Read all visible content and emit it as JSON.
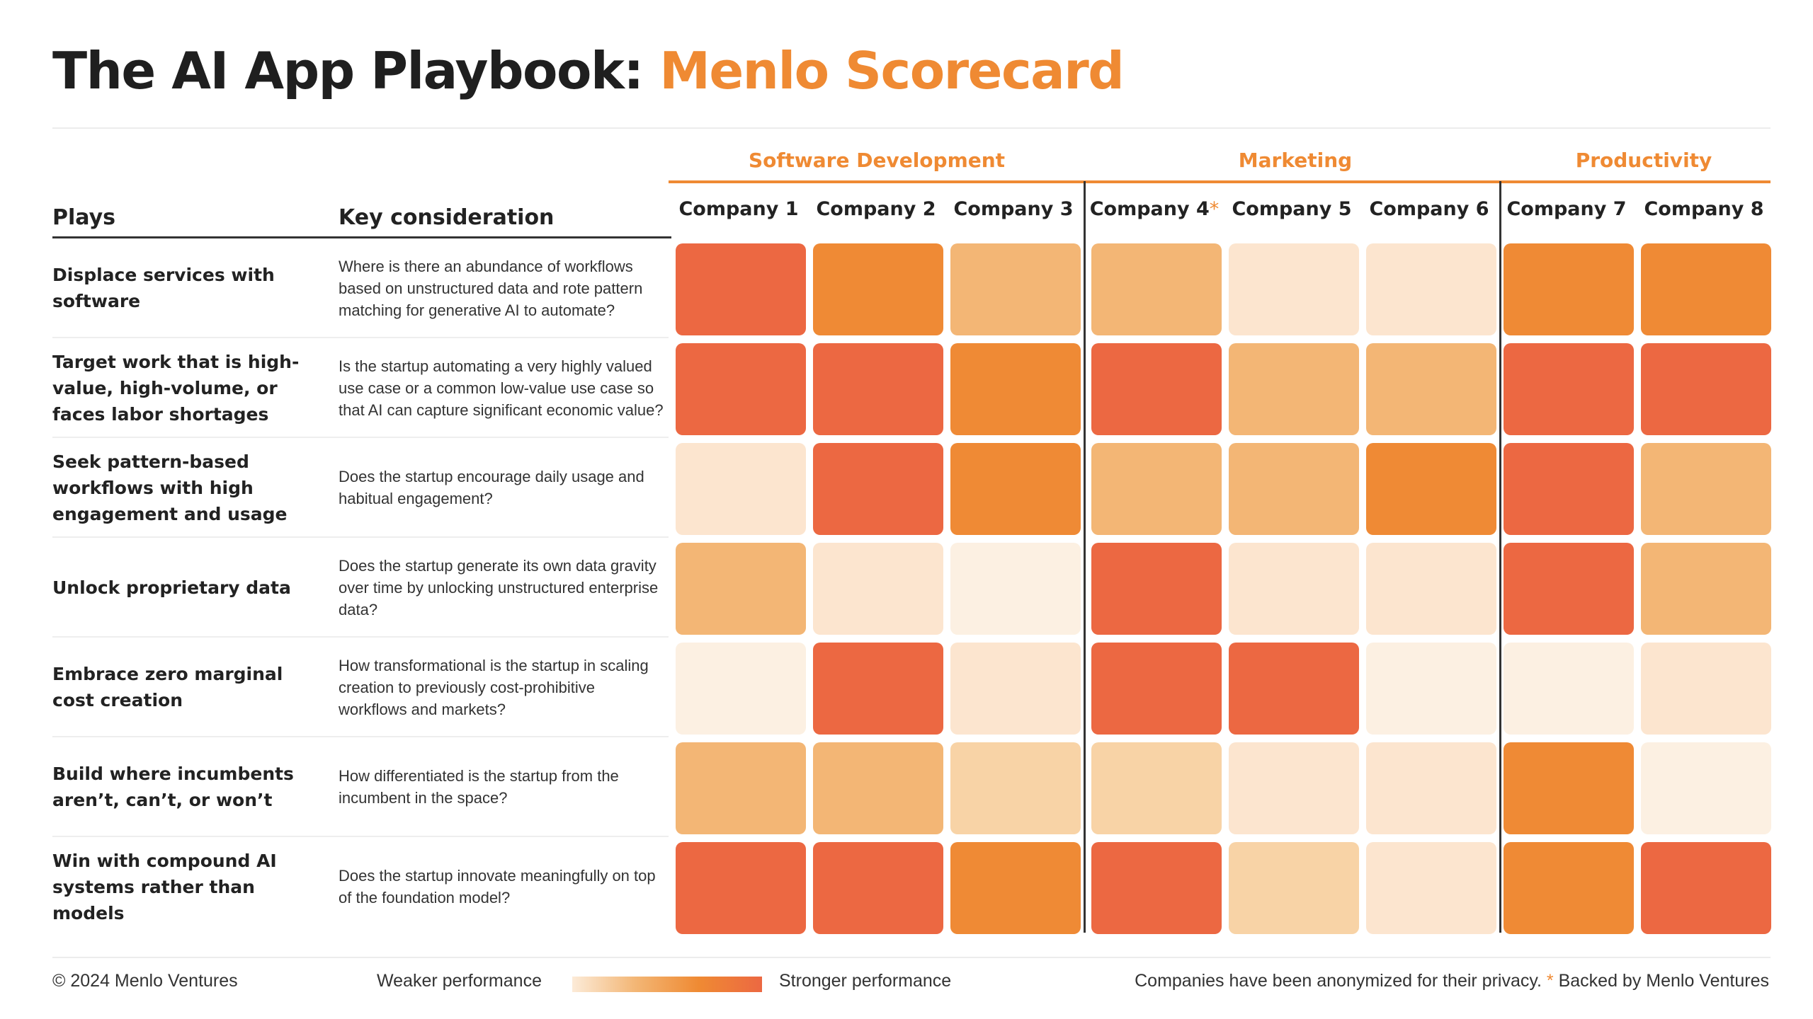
{
  "title": {
    "main": "The AI App Playbook:",
    "accent": "Menlo Scorecard"
  },
  "table_headers": {
    "plays": "Plays",
    "consideration": "Key consideration"
  },
  "groups": [
    {
      "label": "Software Development"
    },
    {
      "label": "Marketing"
    },
    {
      "label": "Productivity"
    }
  ],
  "columns": [
    {
      "label": "Company 1",
      "star": ""
    },
    {
      "label": "Company 2",
      "star": ""
    },
    {
      "label": "Company 3",
      "star": ""
    },
    {
      "label": "Company 4",
      "star": "*"
    },
    {
      "label": "Company 5",
      "star": ""
    },
    {
      "label": "Company 6",
      "star": ""
    },
    {
      "label": "Company 7",
      "star": ""
    },
    {
      "label": "Company 8",
      "star": ""
    }
  ],
  "rows": [
    {
      "play": "Displace services with software",
      "consideration": "Where is there an abundance of workflows based on unstructured data and rote pattern matching for generative AI to automate?"
    },
    {
      "play": "Target work that is high-value, high-volume, or faces labor shortages",
      "consideration": "Is the startup automating a very highly valued use case or a common low-value use case so that AI can capture significant economic value?"
    },
    {
      "play": "Seek pattern-based workflows with high engagement and usage",
      "consideration": "Does the startup encourage daily usage and habitual engagement?"
    },
    {
      "play": "Unlock proprietary data",
      "consideration": "Does the startup generate its own data gravity over time by unlocking unstructured enterprise data?"
    },
    {
      "play": "Embrace zero marginal cost creation",
      "consideration": "How transformational is the startup in scaling creation to previously cost-prohibitive workflows and markets?"
    },
    {
      "play": "Build where incumbents aren’t, can’t, or won’t",
      "consideration": "How differentiated is the startup from the incumbent in the space?"
    },
    {
      "play": "Win with compound AI systems rather than models",
      "consideration": "Does the startup innovate meaningfully on top of the foundation model?"
    }
  ],
  "chart_data": {
    "type": "heatmap",
    "title": "The AI App Playbook: Menlo Scorecard",
    "scale": "1 = weaker performance, 6 = stronger performance",
    "groups": [
      {
        "name": "Software Development",
        "columns": [
          "Company 1",
          "Company 2",
          "Company 3"
        ]
      },
      {
        "name": "Marketing",
        "columns": [
          "Company 4",
          "Company 5",
          "Company 6"
        ]
      },
      {
        "name": "Productivity",
        "columns": [
          "Company 7",
          "Company 8"
        ]
      }
    ],
    "x": [
      "Company 1",
      "Company 2",
      "Company 3",
      "Company 4",
      "Company 5",
      "Company 6",
      "Company 7",
      "Company 8"
    ],
    "y": [
      "Displace services with software",
      "Target work that is high-value, high-volume, or faces labor shortages",
      "Seek pattern-based workflows with high engagement and usage",
      "Unlock proprietary data",
      "Embrace zero marginal cost creation",
      "Build where incumbents aren’t, can’t, or won’t",
      "Win with compound AI systems rather than models"
    ],
    "values": [
      [
        6,
        5,
        4,
        4,
        2,
        2,
        5,
        5
      ],
      [
        6,
        6,
        5,
        6,
        4,
        4,
        6,
        6
      ],
      [
        2,
        6,
        5,
        4,
        4,
        5,
        6,
        4
      ],
      [
        4,
        2,
        1,
        6,
        2,
        2,
        6,
        4
      ],
      [
        1,
        6,
        2,
        6,
        6,
        1,
        1,
        2
      ],
      [
        4,
        4,
        3,
        3,
        2,
        2,
        5,
        1
      ],
      [
        6,
        6,
        5,
        6,
        3,
        2,
        5,
        6
      ]
    ],
    "colors": {
      "1": "#fcf0e2",
      "2": "#fce5cf",
      "3": "#f8d3a6",
      "4": "#f3b675",
      "5": "#ef8a35",
      "6": "#ec6842"
    },
    "legend": {
      "low": "Weaker performance",
      "high": "Stronger performance"
    },
    "grid": false
  },
  "legend": {
    "weak": "Weaker performance",
    "strong": "Stronger performance"
  },
  "footer": {
    "copyright": "© 2024 Menlo Ventures",
    "privacy": "Companies have been anonymized for their privacy.",
    "star": "*",
    "backed": "Backed by Menlo Ventures"
  }
}
